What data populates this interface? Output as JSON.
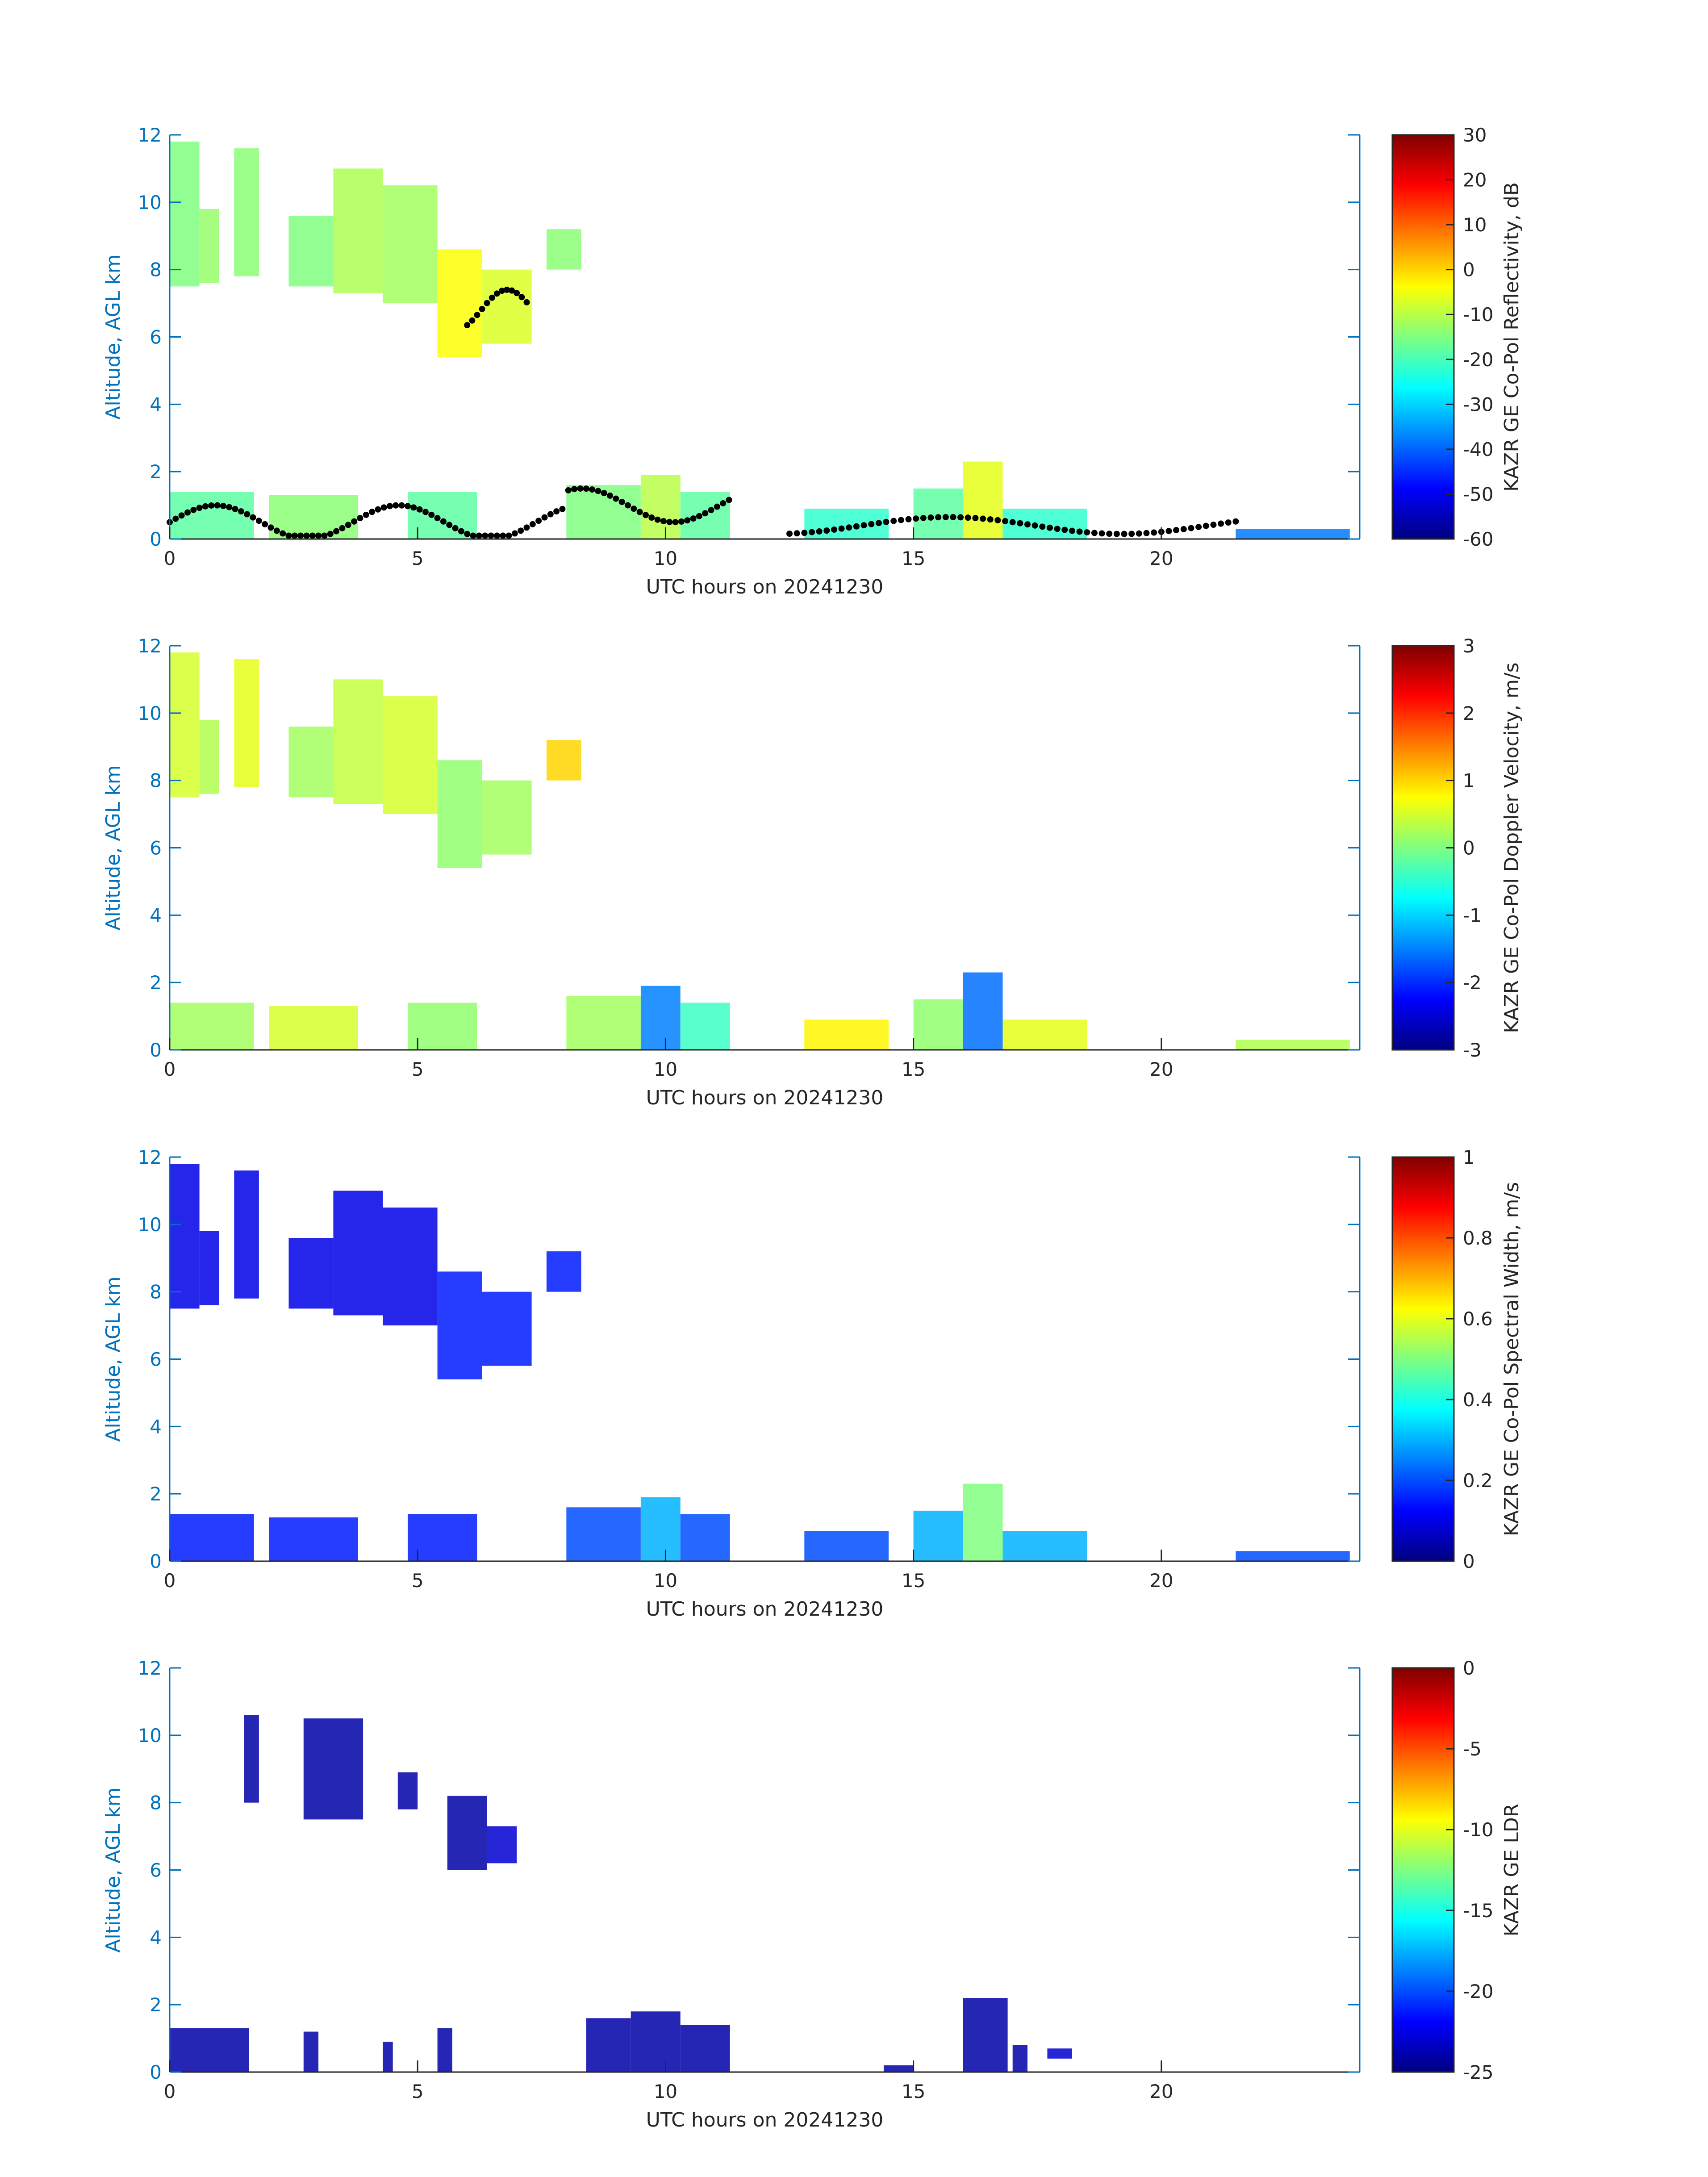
{
  "chart_data": [
    {
      "type": "heatmap",
      "xlabel": "UTC hours on 20241230",
      "ylabel": "Altitude, AGL km",
      "xlim": [
        0,
        24
      ],
      "ylim": [
        0,
        12
      ],
      "xticks": [
        0,
        5,
        10,
        15,
        20
      ],
      "yticks": [
        0,
        2,
        4,
        6,
        8,
        10,
        12
      ],
      "colorbar": {
        "label": "KAZR GE Co-Pol Reflectivity, dB",
        "range": [
          -60,
          30
        ],
        "ticks": [
          -60,
          -50,
          -40,
          -30,
          -20,
          -10,
          0,
          10,
          20,
          30
        ],
        "colormap": "jet"
      },
      "overlay": "black dots (cloud base)",
      "regions": [
        {
          "x": [
            0.0,
            0.6
          ],
          "y": [
            7.5,
            11.8
          ],
          "value": -15
        },
        {
          "x": [
            0.6,
            1.0
          ],
          "y": [
            7.6,
            9.8
          ],
          "value": -13
        },
        {
          "x": [
            1.3,
            1.8
          ],
          "y": [
            7.8,
            11.6
          ],
          "value": -14
        },
        {
          "x": [
            2.4,
            3.3
          ],
          "y": [
            7.5,
            9.6
          ],
          "value": -15
        },
        {
          "x": [
            3.3,
            4.3
          ],
          "y": [
            7.3,
            11.0
          ],
          "value": -11
        },
        {
          "x": [
            4.3,
            5.4
          ],
          "y": [
            7.0,
            10.5
          ],
          "value": -12
        },
        {
          "x": [
            5.4,
            6.3
          ],
          "y": [
            5.4,
            8.6
          ],
          "value": -4
        },
        {
          "x": [
            6.3,
            7.3
          ],
          "y": [
            5.8,
            8.0
          ],
          "value": -7
        },
        {
          "x": [
            7.6,
            8.3
          ],
          "y": [
            8.0,
            9.2
          ],
          "value": -14
        },
        {
          "x": [
            0.0,
            1.7
          ],
          "y": [
            0.0,
            1.4
          ],
          "value": -18
        },
        {
          "x": [
            2.0,
            3.8
          ],
          "y": [
            0.0,
            1.3
          ],
          "value": -14
        },
        {
          "x": [
            4.8,
            6.2
          ],
          "y": [
            0.0,
            1.4
          ],
          "value": -18
        },
        {
          "x": [
            8.0,
            9.5
          ],
          "y": [
            0.0,
            1.6
          ],
          "value": -15
        },
        {
          "x": [
            9.5,
            10.3
          ],
          "y": [
            0.0,
            1.9
          ],
          "value": -10
        },
        {
          "x": [
            10.3,
            11.3
          ],
          "y": [
            0.0,
            1.4
          ],
          "value": -18
        },
        {
          "x": [
            12.8,
            14.5
          ],
          "y": [
            0.0,
            0.9
          ],
          "value": -22
        },
        {
          "x": [
            15.0,
            16.0
          ],
          "y": [
            0.0,
            1.5
          ],
          "value": -18
        },
        {
          "x": [
            16.0,
            16.8
          ],
          "y": [
            0.0,
            2.3
          ],
          "value": -6
        },
        {
          "x": [
            16.8,
            18.5
          ],
          "y": [
            0.0,
            0.9
          ],
          "value": -22
        },
        {
          "x": [
            21.5,
            23.8
          ],
          "y": [
            0.0,
            0.3
          ],
          "value": -38
        }
      ]
    },
    {
      "type": "heatmap",
      "xlabel": "UTC hours on 20241230",
      "ylabel": "Altitude, AGL km",
      "xlim": [
        0,
        24
      ],
      "ylim": [
        0,
        12
      ],
      "xticks": [
        0,
        5,
        10,
        15,
        20
      ],
      "yticks": [
        0,
        2,
        4,
        6,
        8,
        10,
        12
      ],
      "colorbar": {
        "label": "KAZR GE Co-Pol Doppler Velocity, m/s",
        "range": [
          -3,
          3
        ],
        "ticks": [
          -3,
          -2,
          -1,
          0,
          1,
          2,
          3
        ],
        "colormap": "jet"
      },
      "regions": [
        {
          "x": [
            0.0,
            0.6
          ],
          "y": [
            7.5,
            11.8
          ],
          "value": 0.5
        },
        {
          "x": [
            0.6,
            1.0
          ],
          "y": [
            7.6,
            9.8
          ],
          "value": 0.3
        },
        {
          "x": [
            1.3,
            1.8
          ],
          "y": [
            7.8,
            11.6
          ],
          "value": 0.6
        },
        {
          "x": [
            2.4,
            3.3
          ],
          "y": [
            7.5,
            9.6
          ],
          "value": 0.2
        },
        {
          "x": [
            3.3,
            4.3
          ],
          "y": [
            7.3,
            11.0
          ],
          "value": 0.4
        },
        {
          "x": [
            4.3,
            5.4
          ],
          "y": [
            7.0,
            10.5
          ],
          "value": 0.5
        },
        {
          "x": [
            5.4,
            6.3
          ],
          "y": [
            5.4,
            8.6
          ],
          "value": 0.1
        },
        {
          "x": [
            6.3,
            7.3
          ],
          "y": [
            5.8,
            8.0
          ],
          "value": 0.2
        },
        {
          "x": [
            7.6,
            8.3
          ],
          "y": [
            8.0,
            9.2
          ],
          "value": 1.0
        },
        {
          "x": [
            0.0,
            1.7
          ],
          "y": [
            0.0,
            1.4
          ],
          "value": 0.2
        },
        {
          "x": [
            2.0,
            3.8
          ],
          "y": [
            0.0,
            1.3
          ],
          "value": 0.5
        },
        {
          "x": [
            4.8,
            6.2
          ],
          "y": [
            0.0,
            1.4
          ],
          "value": 0.1
        },
        {
          "x": [
            8.0,
            9.5
          ],
          "y": [
            0.0,
            1.6
          ],
          "value": 0.2
        },
        {
          "x": [
            9.5,
            10.3
          ],
          "y": [
            0.0,
            1.9
          ],
          "value": -1.5
        },
        {
          "x": [
            10.3,
            11.3
          ],
          "y": [
            0.0,
            1.4
          ],
          "value": -0.4
        },
        {
          "x": [
            12.8,
            14.5
          ],
          "y": [
            0.0,
            0.9
          ],
          "value": 0.8
        },
        {
          "x": [
            15.0,
            16.0
          ],
          "y": [
            0.0,
            1.5
          ],
          "value": 0.1
        },
        {
          "x": [
            16.0,
            16.8
          ],
          "y": [
            0.0,
            2.3
          ],
          "value": -1.6
        },
        {
          "x": [
            16.8,
            18.5
          ],
          "y": [
            0.0,
            0.9
          ],
          "value": 0.6
        },
        {
          "x": [
            21.5,
            23.8
          ],
          "y": [
            0.0,
            0.3
          ],
          "value": 0.3
        }
      ]
    },
    {
      "type": "heatmap",
      "xlabel": "UTC hours on 20241230",
      "ylabel": "Altitude, AGL km",
      "xlim": [
        0,
        24
      ],
      "ylim": [
        0,
        12
      ],
      "xticks": [
        0,
        5,
        10,
        15,
        20
      ],
      "yticks": [
        0,
        2,
        4,
        6,
        8,
        10,
        12
      ],
      "colorbar": {
        "label": "KAZR GE Co-Pol Spectral Width, m/s",
        "range": [
          0,
          1
        ],
        "ticks": [
          0,
          0.2,
          0.4,
          0.6,
          0.8,
          1
        ],
        "colormap": "jet"
      },
      "regions": [
        {
          "x": [
            0.0,
            0.6
          ],
          "y": [
            7.5,
            11.8
          ],
          "value": 0.1
        },
        {
          "x": [
            0.6,
            1.0
          ],
          "y": [
            7.6,
            9.8
          ],
          "value": 0.1
        },
        {
          "x": [
            1.3,
            1.8
          ],
          "y": [
            7.8,
            11.6
          ],
          "value": 0.1
        },
        {
          "x": [
            2.4,
            3.3
          ],
          "y": [
            7.5,
            9.6
          ],
          "value": 0.1
        },
        {
          "x": [
            3.3,
            4.3
          ],
          "y": [
            7.3,
            11.0
          ],
          "value": 0.1
        },
        {
          "x": [
            4.3,
            5.4
          ],
          "y": [
            7.0,
            10.5
          ],
          "value": 0.1
        },
        {
          "x": [
            5.4,
            6.3
          ],
          "y": [
            5.4,
            8.6
          ],
          "value": 0.15
        },
        {
          "x": [
            6.3,
            7.3
          ],
          "y": [
            5.8,
            8.0
          ],
          "value": 0.15
        },
        {
          "x": [
            7.6,
            8.3
          ],
          "y": [
            8.0,
            9.2
          ],
          "value": 0.15
        },
        {
          "x": [
            0.0,
            1.7
          ],
          "y": [
            0.0,
            1.4
          ],
          "value": 0.15
        },
        {
          "x": [
            2.0,
            3.8
          ],
          "y": [
            0.0,
            1.3
          ],
          "value": 0.15
        },
        {
          "x": [
            4.8,
            6.2
          ],
          "y": [
            0.0,
            1.4
          ],
          "value": 0.15
        },
        {
          "x": [
            8.0,
            9.5
          ],
          "y": [
            0.0,
            1.6
          ],
          "value": 0.2
        },
        {
          "x": [
            9.5,
            10.3
          ],
          "y": [
            0.0,
            1.9
          ],
          "value": 0.3
        },
        {
          "x": [
            10.3,
            11.3
          ],
          "y": [
            0.0,
            1.4
          ],
          "value": 0.2
        },
        {
          "x": [
            12.8,
            14.5
          ],
          "y": [
            0.0,
            0.9
          ],
          "value": 0.2
        },
        {
          "x": [
            15.0,
            16.0
          ],
          "y": [
            0.0,
            1.5
          ],
          "value": 0.3
        },
        {
          "x": [
            16.0,
            16.8
          ],
          "y": [
            0.0,
            2.3
          ],
          "value": 0.5
        },
        {
          "x": [
            16.8,
            18.5
          ],
          "y": [
            0.0,
            0.9
          ],
          "value": 0.3
        },
        {
          "x": [
            21.5,
            23.8
          ],
          "y": [
            0.0,
            0.3
          ],
          "value": 0.2
        }
      ]
    },
    {
      "type": "heatmap",
      "xlabel": "UTC hours on 20241230",
      "ylabel": "Altitude, AGL km",
      "xlim": [
        0,
        24
      ],
      "ylim": [
        0,
        12
      ],
      "xticks": [
        0,
        5,
        10,
        15,
        20
      ],
      "yticks": [
        0,
        2,
        4,
        6,
        8,
        10,
        12
      ],
      "colorbar": {
        "label": "KAZR GE LDR",
        "range": [
          -25,
          0
        ],
        "ticks": [
          -25,
          -20,
          -15,
          -10,
          -5,
          0
        ],
        "colormap": "jet"
      },
      "regions": [
        {
          "x": [
            1.5,
            1.8
          ],
          "y": [
            8.0,
            10.6
          ],
          "value": -24
        },
        {
          "x": [
            2.7,
            3.9
          ],
          "y": [
            7.5,
            10.5
          ],
          "value": -24
        },
        {
          "x": [
            4.6,
            5.0
          ],
          "y": [
            7.8,
            8.9
          ],
          "value": -24
        },
        {
          "x": [
            5.6,
            6.4
          ],
          "y": [
            6.0,
            8.2
          ],
          "value": -24
        },
        {
          "x": [
            6.4,
            7.0
          ],
          "y": [
            6.2,
            7.3
          ],
          "value": -23
        },
        {
          "x": [
            0.0,
            1.6
          ],
          "y": [
            0.0,
            1.3
          ],
          "value": -24
        },
        {
          "x": [
            2.7,
            3.0
          ],
          "y": [
            0.0,
            1.2
          ],
          "value": -24
        },
        {
          "x": [
            4.3,
            4.5
          ],
          "y": [
            0.0,
            0.9
          ],
          "value": -24
        },
        {
          "x": [
            5.4,
            5.7
          ],
          "y": [
            0.0,
            1.3
          ],
          "value": -24
        },
        {
          "x": [
            8.4,
            9.3
          ],
          "y": [
            0.0,
            1.6
          ],
          "value": -24
        },
        {
          "x": [
            9.3,
            10.3
          ],
          "y": [
            0.0,
            1.8
          ],
          "value": -24
        },
        {
          "x": [
            10.3,
            11.3
          ],
          "y": [
            0.0,
            1.4
          ],
          "value": -24
        },
        {
          "x": [
            14.4,
            15.0
          ],
          "y": [
            0.0,
            0.2
          ],
          "value": -24
        },
        {
          "x": [
            16.0,
            16.9
          ],
          "y": [
            0.0,
            2.2
          ],
          "value": -24
        },
        {
          "x": [
            17.0,
            17.3
          ],
          "y": [
            0.0,
            0.8
          ],
          "value": -24
        },
        {
          "x": [
            17.7,
            18.2
          ],
          "y": [
            0.4,
            0.7
          ],
          "value": -23
        }
      ]
    }
  ]
}
